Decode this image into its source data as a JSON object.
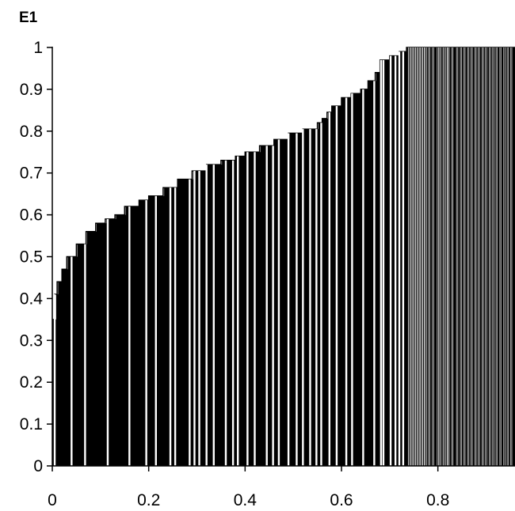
{
  "chart_data": {
    "type": "bar",
    "title": "",
    "xlabel": "",
    "ylabel": "E1",
    "xlim": [
      0,
      0.96
    ],
    "ylim": [
      0,
      1
    ],
    "x_ticks": [
      "0",
      "0.2",
      "0.4",
      "0.6",
      "0.8"
    ],
    "y_ticks": [
      "0",
      "0.1",
      "0.2",
      "0.3",
      "0.4",
      "0.5",
      "0.6",
      "0.7",
      "0.8",
      "0.9",
      "1"
    ],
    "grid": false,
    "legend": "none",
    "bar_color": "#000000",
    "edge_color": "#000000",
    "background": "#ffffff",
    "profile": {
      "x": [
        0,
        0.005,
        0.01,
        0.02,
        0.03,
        0.05,
        0.07,
        0.09,
        0.11,
        0.13,
        0.15,
        0.18,
        0.2,
        0.23,
        0.26,
        0.29,
        0.32,
        0.35,
        0.38,
        0.4,
        0.43,
        0.46,
        0.49,
        0.52,
        0.55,
        0.56,
        0.57,
        0.58,
        0.6,
        0.62,
        0.64,
        0.655,
        0.67,
        0.68,
        0.7,
        0.72,
        0.735
      ],
      "y": [
        0.35,
        0.41,
        0.44,
        0.47,
        0.5,
        0.53,
        0.56,
        0.58,
        0.59,
        0.6,
        0.62,
        0.635,
        0.645,
        0.665,
        0.685,
        0.705,
        0.72,
        0.73,
        0.74,
        0.75,
        0.765,
        0.78,
        0.795,
        0.805,
        0.82,
        0.83,
        0.845,
        0.86,
        0.88,
        0.89,
        0.9,
        0.92,
        0.94,
        0.97,
        0.98,
        0.99,
        1.0
      ]
    },
    "gaps_x": [
      0.005,
      0.04,
      0.068,
      0.115,
      0.16,
      0.195,
      0.215,
      0.245,
      0.255,
      0.285,
      0.295,
      0.305,
      0.32,
      0.335,
      0.36,
      0.375,
      0.385,
      0.405,
      0.42,
      0.445,
      0.458,
      0.47,
      0.49,
      0.507,
      0.52,
      0.535,
      0.548,
      0.558,
      0.575,
      0.59,
      0.61,
      0.622,
      0.645,
      0.668,
      0.682,
      0.687,
      0.702,
      0.712,
      0.72,
      0.728,
      0.74,
      0.745,
      0.75,
      0.755,
      0.76,
      0.765,
      0.77,
      0.775,
      0.782,
      0.79,
      0.8,
      0.805,
      0.812,
      0.818,
      0.822,
      0.83,
      0.84,
      0.848,
      0.855,
      0.863,
      0.87,
      0.878,
      0.885,
      0.893,
      0.9,
      0.908,
      0.915,
      0.922,
      0.93,
      0.938,
      0.945,
      0.952
    ]
  }
}
